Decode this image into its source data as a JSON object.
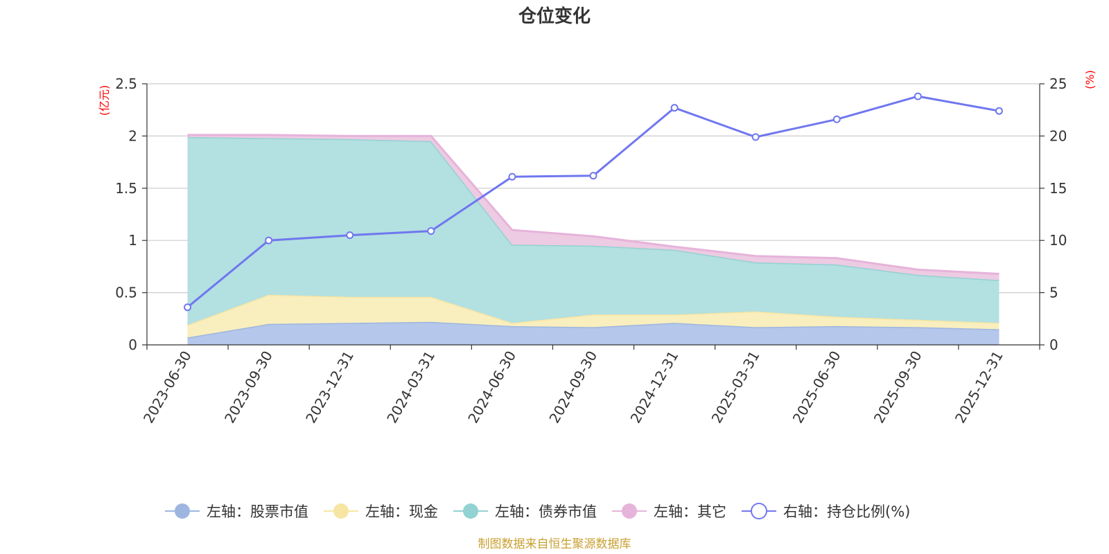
{
  "chart_data": {
    "type": "area",
    "title": "仓位变化",
    "left_axis": {
      "unit": "(亿元)",
      "ylim": [
        0,
        2.5
      ],
      "ticks": [
        "0",
        "0.5",
        "1",
        "1.5",
        "2",
        "2.5"
      ]
    },
    "right_axis": {
      "unit": "(%)",
      "ylim": [
        0,
        25
      ],
      "ticks": [
        "0",
        "5",
        "10",
        "15",
        "20",
        "25"
      ]
    },
    "categories": [
      "2023-06-30",
      "2023-09-30",
      "2023-12-31",
      "2024-03-31",
      "2024-06-30",
      "2024-09-30",
      "2024-12-31",
      "2025-03-31",
      "2025-06-30",
      "2025-09-30",
      "2025-12-31"
    ],
    "series": [
      {
        "name": "左轴：股票市值",
        "axis": "left",
        "stack": true,
        "color": "#9db6e0",
        "fill": "#b5c7ea",
        "values": [
          0.07,
          0.2,
          0.21,
          0.22,
          0.18,
          0.17,
          0.21,
          0.17,
          0.18,
          0.17,
          0.15
        ]
      },
      {
        "name": "左轴：现金",
        "axis": "left",
        "stack": true,
        "color": "#f7e5a4",
        "fill": "#f9eebd",
        "values": [
          0.12,
          0.28,
          0.25,
          0.24,
          0.03,
          0.12,
          0.08,
          0.15,
          0.09,
          0.07,
          0.06
        ]
      },
      {
        "name": "左轴：债券市值",
        "axis": "left",
        "stack": true,
        "color": "#92d2d2",
        "fill": "#b3e0e1",
        "values": [
          1.8,
          1.5,
          1.51,
          1.49,
          0.75,
          0.66,
          0.62,
          0.47,
          0.5,
          0.43,
          0.41
        ]
      },
      {
        "name": "左轴：其它",
        "axis": "left",
        "stack": true,
        "color": "#e6b3da",
        "fill": "#edcbe3",
        "values": [
          0.02,
          0.03,
          0.03,
          0.05,
          0.14,
          0.09,
          0.03,
          0.06,
          0.06,
          0.05,
          0.06
        ]
      },
      {
        "name": "右轴：持仓比例(%)",
        "axis": "right",
        "type": "line",
        "color": "#7077ef",
        "values": [
          3.6,
          10.0,
          10.5,
          10.9,
          16.1,
          16.2,
          22.7,
          19.9,
          21.6,
          23.8,
          22.4
        ]
      }
    ],
    "grid": true,
    "legend_position": "bottom"
  },
  "source_note": "制图数据来自恒生聚源数据库",
  "colors": {
    "title": "#333333",
    "axis": "#333333",
    "grid": "#cccccc",
    "unit": "#ff0000",
    "source": "#c8a032"
  }
}
